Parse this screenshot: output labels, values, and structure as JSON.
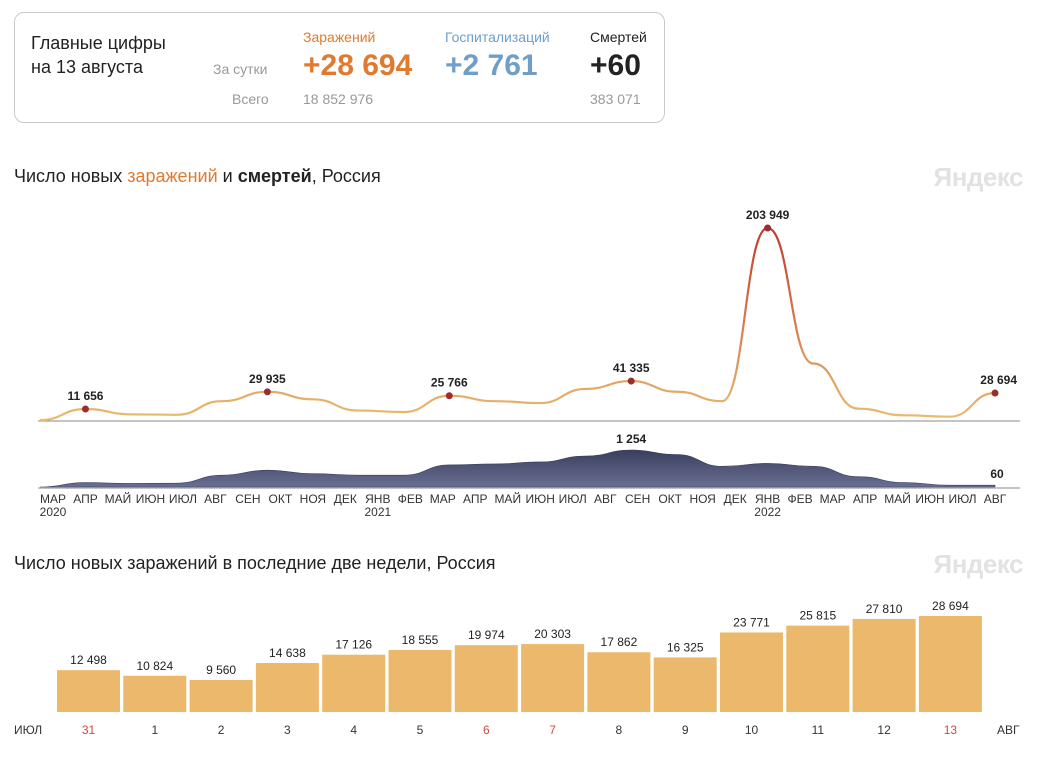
{
  "summary": {
    "headline_line1": "Главные цифры",
    "headline_line2": "на 13 августа",
    "row_day_label": "За сутки",
    "row_total_label": "Всего",
    "infections": {
      "label": "Заражений",
      "day": "+28 694",
      "total": "18 852 976",
      "color": "#e07a2e"
    },
    "hospitalizations": {
      "label": "Госпитализаций",
      "day": "+2 761",
      "color": "#6f9fc9"
    },
    "deaths": {
      "label": "Смертей",
      "day": "+60",
      "total": "383 071",
      "color": "#222222"
    }
  },
  "chart1": {
    "title_part1": "Число новых ",
    "title_part2": "заражений",
    "title_part3": " и ",
    "title_part4": "смертей",
    "title_part5": ", Россия",
    "brand": "Яндекс"
  },
  "chart2": {
    "title": "Число новых заражений в последние две недели, Россия",
    "brand": "Яндекс"
  },
  "chart_data": [
    {
      "type": "line",
      "series": [
        {
          "x": [
            "2020-03",
            "2020-05",
            "2020-07",
            "2020-09",
            "2020-11",
            "2020-12",
            "2021-01",
            "2021-03",
            "2021-05",
            "2021-07",
            "2021-08",
            "2021-09",
            "2021-10",
            "2021-11",
            "2021-12",
            "2022-01",
            "2022-02",
            "2022-03",
            "2022-04",
            "2022-05",
            "2022-07",
            "2022-08"
          ],
          "values": [
            0,
            11656,
            6000,
            5500,
            20000,
            29935,
            22000,
            10000,
            8500,
            25766,
            20000,
            18000,
            33000,
            41335,
            30000,
            20000,
            203949,
            60000,
            12000,
            5000,
            3500,
            28694
          ],
          "annotations": [
            {
              "label": "11 656",
              "value": 11656
            },
            {
              "label": "29 935",
              "value": 29935
            },
            {
              "label": "25 766",
              "value": 25766
            },
            {
              "label": "41 335",
              "value": 41335
            },
            {
              "label": "203 949",
              "value": 203949
            },
            {
              "label": "28 694",
              "value": 28694
            }
          ]
        }
      ],
      "ylim": [
        0,
        203949
      ]
    },
    {
      "type": "area",
      "series": [
        {
          "values": [
            0,
            150,
            120,
            130,
            400,
            570,
            450,
            400,
            400,
            750,
            780,
            850,
            1050,
            1254,
            1100,
            700,
            800,
            700,
            350,
            150,
            60,
            60
          ],
          "annotations": [
            {
              "label": "1 254",
              "value": 1254
            },
            {
              "label": "60",
              "value": 60
            }
          ]
        }
      ],
      "month_labels": [
        "МАР",
        "АПР",
        "МАЙ",
        "ИЮН",
        "ИЮЛ",
        "АВГ",
        "СЕН",
        "ОКТ",
        "НОЯ",
        "ДЕК",
        "ЯНВ",
        "ФЕВ",
        "МАР",
        "АПР",
        "МАЙ",
        "ИЮН",
        "ИЮЛ",
        "АВГ",
        "СЕН",
        "ОКТ",
        "НОЯ",
        "ДЕК",
        "ЯНВ",
        "ФЕВ",
        "МАР",
        "АПР",
        "МАЙ",
        "ИЮН",
        "ИЮЛ",
        "АВГ"
      ],
      "year_labels": [
        "2020",
        "2021",
        "2022"
      ],
      "year_label_month_index": [
        0,
        10,
        22
      ]
    },
    {
      "type": "bar",
      "categories": [
        "31",
        "1",
        "2",
        "3",
        "4",
        "5",
        "6",
        "7",
        "8",
        "9",
        "10",
        "11",
        "12",
        "13"
      ],
      "values": [
        12498,
        10824,
        9560,
        14638,
        17126,
        18555,
        19974,
        20303,
        17862,
        16325,
        23771,
        25815,
        27810,
        28694
      ],
      "value_labels": [
        "12 498",
        "10 824",
        "9 560",
        "14 638",
        "17 126",
        "18 555",
        "19 974",
        "20 303",
        "17 862",
        "16 325",
        "23 771",
        "25 815",
        "27 810",
        "28 694"
      ],
      "weekend_indices": [
        0,
        6,
        7,
        13
      ],
      "month_left": "ИЮЛ",
      "month_right": "АВГ",
      "bar_color": "#ebb86c",
      "weekend_label_color": "#d0493c",
      "ylim": [
        0,
        28694
      ]
    }
  ]
}
